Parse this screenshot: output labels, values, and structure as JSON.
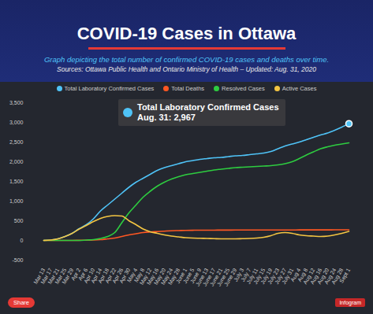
{
  "chart_data": {
    "type": "line",
    "title": "COVID-19 Cases in Ottawa",
    "subtitle": "Graph depicting the total number of confirmed COVID-19 cases and deaths over time.",
    "source": "Sources:  Ottawa Public Health and Ontario Ministry of Health – Updated:  Aug. 31, 2020",
    "categories": [
      "Mar 13",
      "Mar 17",
      "Mar 21",
      "Mar 25",
      "Mar 29",
      "Apr 2",
      "Apr 6",
      "Apr 10",
      "Apr 14",
      "Apr 18",
      "Apr 22",
      "Apr 26",
      "Apr 30",
      "May 4",
      "May 8",
      "May 12",
      "May 16",
      "May 20",
      "May 24",
      "May 28",
      "June 1",
      "June 5",
      "June 9",
      "June 13",
      "June 17",
      "June 21",
      "June 25",
      "June 29",
      "July 3",
      "July 7",
      "July 11",
      "July 15",
      "July 19",
      "July 23",
      "July 27",
      "July 31",
      "Aug 4",
      "Aug 8",
      "Aug 12",
      "Aug 16",
      "Aug 20",
      "Aug 24",
      "Aug 28",
      "Sept 1"
    ],
    "series": [
      {
        "name": "Total Laboratory Confirmed Cases",
        "color": "#4fc3f7",
        "values": [
          1,
          10,
          40,
          100,
          180,
          300,
          400,
          550,
          750,
          900,
          1050,
          1200,
          1350,
          1480,
          1580,
          1680,
          1780,
          1850,
          1900,
          1950,
          2000,
          2030,
          2060,
          2080,
          2100,
          2110,
          2130,
          2150,
          2160,
          2180,
          2200,
          2220,
          2260,
          2330,
          2400,
          2450,
          2500,
          2560,
          2620,
          2680,
          2730,
          2800,
          2880,
          2967
        ]
      },
      {
        "name": "Total Deaths",
        "color": "#ff5722",
        "values": [
          0,
          0,
          0,
          1,
          1,
          3,
          5,
          10,
          20,
          40,
          60,
          100,
          140,
          170,
          200,
          215,
          225,
          235,
          245,
          250,
          255,
          258,
          260,
          260,
          261,
          262,
          263,
          264,
          264,
          264,
          264,
          265,
          265,
          266,
          266,
          266,
          267,
          267,
          268,
          268,
          268,
          269,
          269,
          270
        ]
      },
      {
        "name": "Resolved Cases",
        "color": "#2ecc40",
        "values": [
          0,
          0,
          0,
          0,
          0,
          0,
          10,
          20,
          50,
          100,
          200,
          450,
          700,
          900,
          1100,
          1250,
          1380,
          1480,
          1560,
          1620,
          1670,
          1700,
          1730,
          1760,
          1790,
          1810,
          1830,
          1850,
          1860,
          1870,
          1880,
          1890,
          1900,
          1920,
          1950,
          2000,
          2080,
          2170,
          2250,
          2330,
          2380,
          2420,
          2450,
          2480
        ]
      },
      {
        "name": "Active Cases",
        "color": "#f4c542",
        "values": [
          1,
          10,
          40,
          100,
          180,
          290,
          380,
          480,
          560,
          610,
          630,
          620,
          500,
          400,
          290,
          220,
          180,
          140,
          110,
          90,
          70,
          60,
          55,
          50,
          45,
          40,
          40,
          40,
          45,
          50,
          60,
          80,
          120,
          180,
          200,
          180,
          140,
          120,
          110,
          100,
          110,
          140,
          180,
          230
        ]
      }
    ],
    "ylim": [
      -500,
      3500
    ],
    "yticks": [
      -500,
      0,
      500,
      {
        "value": 1000,
        "label": "1,000"
      },
      {
        "value": 1500,
        "label": "1,500"
      },
      {
        "value": 2000,
        "label": "2,000"
      },
      {
        "value": 2500,
        "label": "2,500"
      },
      {
        "value": 3000,
        "label": "3,000"
      },
      {
        "value": 3500,
        "label": "3,500"
      }
    ],
    "grid": false,
    "legend": "top",
    "annotations": [
      {
        "series": "Total Laboratory Confirmed Cases",
        "text": "Aug. 31: 2,967",
        "value": 2967
      }
    ],
    "buttons": [
      "Share"
    ],
    "brand": "Infogram"
  }
}
